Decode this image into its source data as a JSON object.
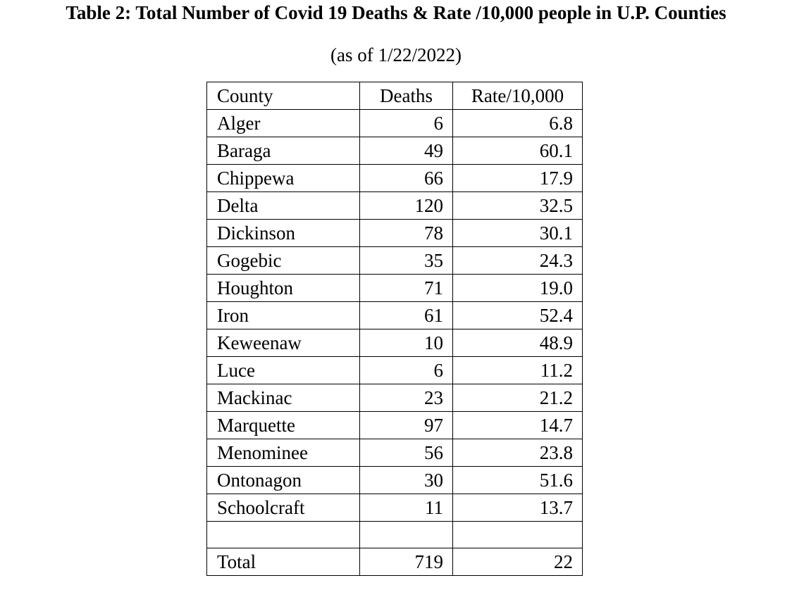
{
  "title": "Table 2: Total Number of Covid 19 Deaths & Rate /10,000 people in U.P. Counties",
  "subtitle": "(as of 1/22/2022)",
  "table": {
    "headers": [
      "County",
      "Deaths",
      "Rate/10,000"
    ],
    "rows": [
      [
        "Alger",
        "6",
        "6.8"
      ],
      [
        "Baraga",
        "49",
        "60.1"
      ],
      [
        "Chippewa",
        "66",
        "17.9"
      ],
      [
        "Delta",
        "120",
        "32.5"
      ],
      [
        "Dickinson",
        "78",
        "30.1"
      ],
      [
        "Gogebic",
        "35",
        "24.3"
      ],
      [
        "Houghton",
        "71",
        "19.0"
      ],
      [
        "Iron",
        "61",
        "52.4"
      ],
      [
        "Keweenaw",
        "10",
        "48.9"
      ],
      [
        "Luce",
        "6",
        "11.2"
      ],
      [
        "Mackinac",
        "23",
        "21.2"
      ],
      [
        "Marquette",
        "97",
        "14.7"
      ],
      [
        "Menominee",
        "56",
        "23.8"
      ],
      [
        "Ontonagon",
        "30",
        "51.6"
      ],
      [
        "Schoolcraft",
        "11",
        "13.7"
      ],
      [
        "",
        "",
        ""
      ],
      [
        "Total",
        "719",
        "22"
      ]
    ]
  }
}
